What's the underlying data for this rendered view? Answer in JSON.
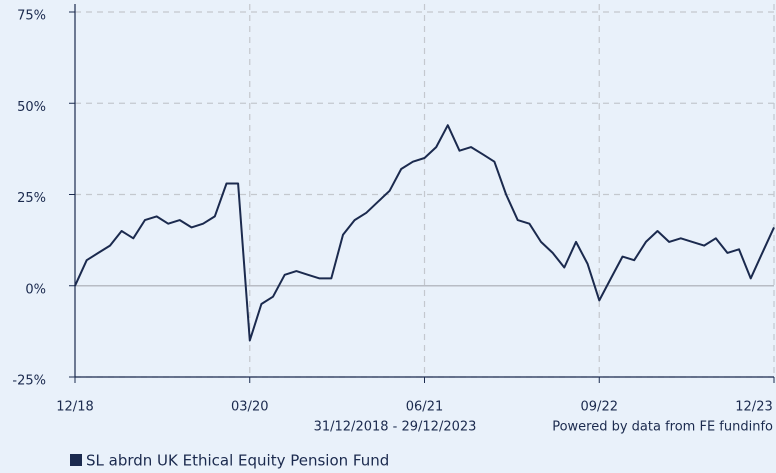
{
  "chart_data": {
    "type": "line",
    "x": [
      "12/18",
      "01/19",
      "02/19",
      "03/19",
      "04/19",
      "05/19",
      "06/19",
      "07/19",
      "08/19",
      "09/19",
      "10/19",
      "11/19",
      "12/19",
      "01/20",
      "02/20",
      "03/20",
      "04/20",
      "05/20",
      "06/20",
      "07/20",
      "08/20",
      "09/20",
      "10/20",
      "11/20",
      "12/20",
      "01/21",
      "02/21",
      "03/21",
      "04/21",
      "05/21",
      "06/21",
      "07/21",
      "08/21",
      "09/21",
      "10/21",
      "11/21",
      "12/21",
      "01/22",
      "02/22",
      "03/22",
      "04/22",
      "05/22",
      "06/22",
      "07/22",
      "08/22",
      "09/22",
      "10/22",
      "11/22",
      "12/22",
      "01/23",
      "02/23",
      "03/23",
      "04/23",
      "05/23",
      "06/23",
      "07/23",
      "08/23",
      "09/23",
      "10/23",
      "11/23",
      "12/23"
    ],
    "series": [
      {
        "name": "SL abrdn UK Ethical Equity Pension Fund",
        "color": "#1b2a4e",
        "values": [
          0,
          7,
          9,
          11,
          15,
          13,
          18,
          19,
          17,
          18,
          16,
          17,
          19,
          28,
          28,
          -15,
          -5,
          -3,
          3,
          4,
          3,
          2,
          2,
          14,
          18,
          20,
          23,
          26,
          32,
          34,
          35,
          38,
          44,
          37,
          38,
          36,
          34,
          25,
          18,
          17,
          12,
          9,
          5,
          12,
          6,
          -4,
          2,
          8,
          7,
          12,
          15,
          12,
          13,
          12,
          11,
          13,
          9,
          10,
          2,
          9,
          16
        ]
      }
    ],
    "ylim": [
      -25,
      75
    ],
    "yticks": [
      {
        "value": -25,
        "label": "-25%"
      },
      {
        "value": 0,
        "label": "0%"
      },
      {
        "value": 25,
        "label": "25%"
      },
      {
        "value": 50,
        "label": "50%"
      },
      {
        "value": 75,
        "label": "75%"
      }
    ],
    "xticks": [
      "12/18",
      "03/20",
      "06/21",
      "09/22",
      "12/23"
    ],
    "grid": true,
    "date_range": "31/12/2018 - 29/12/2023",
    "source": "Powered by data from FE fundinfo"
  }
}
